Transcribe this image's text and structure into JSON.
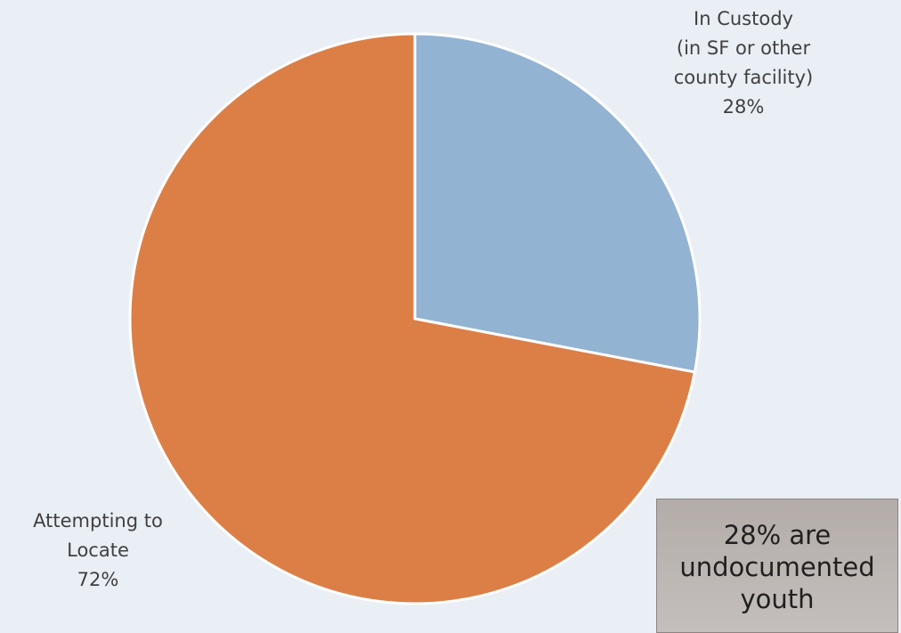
{
  "chart_data": {
    "type": "pie",
    "slices": [
      {
        "label_lines": [
          "In Custody",
          "(in SF or other",
          "county facility)",
          "28%"
        ],
        "value": 28,
        "color": "#93b3d2"
      },
      {
        "label_lines": [
          "Attempting to",
          "Locate",
          "72%"
        ],
        "value": 72,
        "color": "#dc7f47"
      }
    ],
    "start_angle_deg": 0,
    "direction": "clockwise",
    "slice_border_color": "#ffffff",
    "legend": "none"
  },
  "callout": {
    "text": "28% are\nundocumented\nyouth"
  }
}
